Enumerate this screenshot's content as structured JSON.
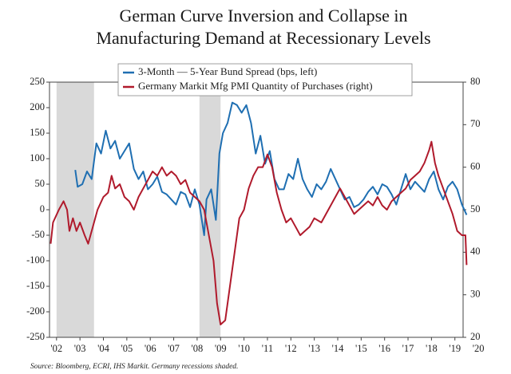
{
  "chart_data": {
    "type": "line",
    "title": [
      "German Curve Inversion and Collapse in",
      "Manufacturing Demand at Recessionary Levels"
    ],
    "source": "Source: Bloomberg, ECRI, IHS Markit. Germany recessions shaded.",
    "xlim": [
      2001.7,
      2019.35
    ],
    "xticks": [
      {
        "value": 2002,
        "label": "'02"
      },
      {
        "value": 2003,
        "label": "'03"
      },
      {
        "value": 2004,
        "label": "'04"
      },
      {
        "value": 2005,
        "label": "'05"
      },
      {
        "value": 2006,
        "label": "'06"
      },
      {
        "value": 2007,
        "label": "'07"
      },
      {
        "value": 2008,
        "label": "'08"
      },
      {
        "value": 2009,
        "label": "'09"
      },
      {
        "value": 2010,
        "label": "'10"
      },
      {
        "value": 2011,
        "label": "'11"
      },
      {
        "value": 2012,
        "label": "'12"
      },
      {
        "value": 2013,
        "label": "'13"
      },
      {
        "value": 2014,
        "label": "'14"
      },
      {
        "value": 2015,
        "label": "'15"
      },
      {
        "value": 2016,
        "label": "'16"
      },
      {
        "value": 2017,
        "label": "'17"
      },
      {
        "value": 2018,
        "label": "'18"
      },
      {
        "value": 2019,
        "label": "'19"
      },
      {
        "value": 2020,
        "label": "'20"
      }
    ],
    "ylim": [
      -250,
      250
    ],
    "yticks": [
      -250,
      -200,
      -150,
      -100,
      -50,
      0,
      50,
      100,
      150,
      200,
      250
    ],
    "y2lim": [
      20,
      80
    ],
    "y2ticks": [
      20,
      30,
      40,
      50,
      60,
      70,
      80
    ],
    "recessions": [
      [
        2002.0,
        2003.6
      ],
      [
        2008.1,
        2009.0
      ]
    ],
    "recession_color": "#d9d9d9",
    "series": [
      {
        "name": "3-Month — 5-Year Bund Spread (bps, left)",
        "color": "#1f6fb2",
        "axis": "y",
        "x": [
          2002.8,
          2002.9,
          2003.1,
          2003.3,
          2003.5,
          2003.7,
          2003.9,
          2004.1,
          2004.3,
          2004.5,
          2004.7,
          2004.9,
          2005.1,
          2005.3,
          2005.5,
          2005.7,
          2005.9,
          2006.1,
          2006.3,
          2006.5,
          2006.7,
          2006.9,
          2007.1,
          2007.3,
          2007.5,
          2007.7,
          2007.9,
          2008.1,
          2008.3,
          2008.4,
          2008.6,
          2008.8,
          2008.95,
          2009.1,
          2009.3,
          2009.5,
          2009.7,
          2009.9,
          2010.1,
          2010.3,
          2010.5,
          2010.7,
          2010.9,
          2011.1,
          2011.3,
          2011.5,
          2011.7,
          2011.9,
          2012.1,
          2012.3,
          2012.5,
          2012.7,
          2012.9,
          2013.1,
          2013.3,
          2013.5,
          2013.7,
          2013.9,
          2014.1,
          2014.3,
          2014.5,
          2014.7,
          2014.9,
          2015.1,
          2015.3,
          2015.5,
          2015.7,
          2015.9,
          2016.1,
          2016.3,
          2016.5,
          2016.7,
          2016.9,
          2017.1,
          2017.3,
          2017.5,
          2017.7,
          2017.9,
          2018.1,
          2018.3,
          2018.5,
          2018.7,
          2018.9,
          2019.1,
          2019.3,
          2019.5
        ],
        "values": [
          78,
          45,
          50,
          75,
          60,
          130,
          110,
          155,
          120,
          135,
          100,
          115,
          130,
          80,
          60,
          75,
          40,
          50,
          65,
          35,
          30,
          20,
          10,
          35,
          30,
          5,
          40,
          10,
          -50,
          20,
          40,
          -20,
          110,
          150,
          170,
          210,
          205,
          190,
          205,
          170,
          110,
          145,
          90,
          115,
          60,
          40,
          40,
          70,
          60,
          100,
          60,
          40,
          25,
          50,
          40,
          55,
          80,
          60,
          40,
          20,
          25,
          5,
          10,
          20,
          35,
          45,
          30,
          50,
          45,
          30,
          10,
          40,
          70,
          40,
          55,
          45,
          35,
          60,
          75,
          40,
          20,
          45,
          55,
          40,
          10,
          -10
        ]
      },
      {
        "name": "Germany Markit Mfg PMI Quantity of Purchases (right)",
        "color": "#b01a2c",
        "axis": "y2",
        "x": [
          2001.75,
          2001.85,
          2002.1,
          2002.3,
          2002.45,
          2002.55,
          2002.7,
          2002.85,
          2003.0,
          2003.2,
          2003.35,
          2003.55,
          2003.75,
          2004.0,
          2004.2,
          2004.35,
          2004.5,
          2004.7,
          2004.9,
          2005.1,
          2005.3,
          2005.5,
          2005.7,
          2005.9,
          2006.1,
          2006.3,
          2006.5,
          2006.7,
          2006.9,
          2007.1,
          2007.3,
          2007.5,
          2007.7,
          2007.9,
          2008.1,
          2008.3,
          2008.5,
          2008.7,
          2008.85,
          2009.0,
          2009.2,
          2009.4,
          2009.6,
          2009.8,
          2010.0,
          2010.2,
          2010.4,
          2010.6,
          2010.8,
          2011.0,
          2011.2,
          2011.4,
          2011.6,
          2011.8,
          2012.0,
          2012.2,
          2012.4,
          2012.6,
          2012.8,
          2013.0,
          2013.3,
          2013.6,
          2013.9,
          2014.1,
          2014.3,
          2014.5,
          2014.7,
          2014.9,
          2015.1,
          2015.3,
          2015.5,
          2015.7,
          2015.9,
          2016.1,
          2016.3,
          2016.5,
          2016.7,
          2016.9,
          2017.1,
          2017.3,
          2017.5,
          2017.7,
          2017.9,
          2018.0,
          2018.15,
          2018.3,
          2018.5,
          2018.7,
          2018.9,
          2019.1,
          2019.3,
          2019.45,
          2019.5
        ],
        "values": [
          42,
          47,
          50,
          52,
          50,
          45,
          48,
          45,
          47,
          44,
          42,
          46,
          50,
          53,
          54,
          58,
          55,
          56,
          53,
          52,
          50,
          53,
          55,
          57,
          59,
          58,
          60,
          58,
          59,
          58,
          56,
          57,
          54,
          53,
          52,
          50,
          44,
          38,
          28,
          23,
          24,
          32,
          40,
          48,
          50,
          55,
          58,
          60,
          60,
          63,
          60,
          54,
          50,
          47,
          48,
          46,
          44,
          45,
          46,
          48,
          47,
          50,
          53,
          55,
          53,
          51,
          49,
          50,
          51,
          52,
          51,
          53,
          51,
          50,
          52,
          53,
          54,
          55,
          57,
          58,
          59,
          61,
          64,
          66,
          61,
          58,
          55,
          52,
          49,
          45,
          44,
          44,
          37
        ]
      }
    ]
  }
}
